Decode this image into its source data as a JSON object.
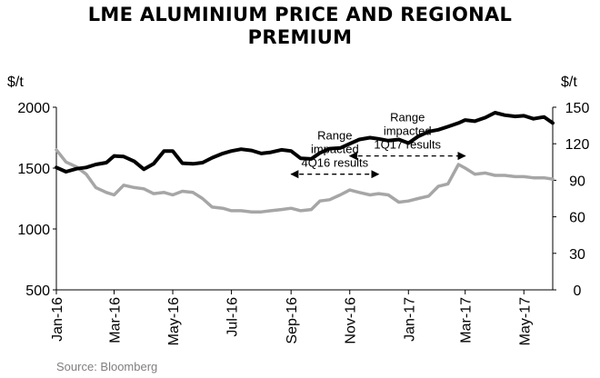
{
  "title_line1": "LME ALUMINIUM PRICE AND REGIONAL",
  "title_line2": "PREMIUM",
  "source": "Source: Bloomberg",
  "colors": {
    "lme_price": "#000000",
    "premium": "#a6a6a6",
    "axis": "#000000"
  },
  "chart_data": {
    "type": "line",
    "title": "LME ALUMINIUM PRICE AND REGIONAL PREMIUM",
    "y_left": {
      "label": "$/t",
      "range": [
        500,
        2000
      ],
      "ticks": [
        500,
        1000,
        1500,
        2000
      ]
    },
    "y_right": {
      "label": "$/t",
      "range": [
        0,
        150
      ],
      "ticks": [
        0,
        30,
        60,
        90,
        120,
        150
      ]
    },
    "x_range": [
      "2016-01-01",
      "2017-05-31"
    ],
    "x_ticks": [
      {
        "date": "2016-01-01",
        "label": "Jan-16"
      },
      {
        "date": "2016-03-01",
        "label": "Mar-16"
      },
      {
        "date": "2016-05-01",
        "label": "May-16"
      },
      {
        "date": "2016-07-01",
        "label": "Jul-16"
      },
      {
        "date": "2016-09-01",
        "label": "Sep-16"
      },
      {
        "date": "2016-11-01",
        "label": "Nov-16"
      },
      {
        "date": "2017-01-01",
        "label": "Jan-17"
      },
      {
        "date": "2017-03-01",
        "label": "Mar-17"
      },
      {
        "date": "2017-05-01",
        "label": "May-17"
      }
    ],
    "series": [
      {
        "axis": "left",
        "style": "bold-black",
        "points": [
          [
            "2016-01-01",
            1505
          ],
          [
            "2016-01-11",
            1470
          ],
          [
            "2016-01-22",
            1495
          ],
          [
            "2016-02-01",
            1505
          ],
          [
            "2016-02-11",
            1530
          ],
          [
            "2016-02-22",
            1545
          ],
          [
            "2016-03-01",
            1600
          ],
          [
            "2016-03-11",
            1595
          ],
          [
            "2016-03-22",
            1555
          ],
          [
            "2016-04-01",
            1490
          ],
          [
            "2016-04-11",
            1535
          ],
          [
            "2016-04-22",
            1640
          ],
          [
            "2016-05-01",
            1640
          ],
          [
            "2016-05-11",
            1540
          ],
          [
            "2016-05-22",
            1535
          ],
          [
            "2016-06-01",
            1545
          ],
          [
            "2016-06-11",
            1585
          ],
          [
            "2016-06-22",
            1620
          ],
          [
            "2016-07-01",
            1640
          ],
          [
            "2016-07-11",
            1655
          ],
          [
            "2016-07-22",
            1645
          ],
          [
            "2016-08-01",
            1620
          ],
          [
            "2016-08-11",
            1630
          ],
          [
            "2016-08-22",
            1650
          ],
          [
            "2016-09-01",
            1640
          ],
          [
            "2016-09-11",
            1580
          ],
          [
            "2016-09-22",
            1575
          ],
          [
            "2016-10-01",
            1625
          ],
          [
            "2016-10-11",
            1660
          ],
          [
            "2016-10-22",
            1665
          ],
          [
            "2016-11-01",
            1700
          ],
          [
            "2016-11-11",
            1735
          ],
          [
            "2016-11-22",
            1750
          ],
          [
            "2016-12-01",
            1740
          ],
          [
            "2016-12-11",
            1725
          ],
          [
            "2016-12-22",
            1735
          ],
          [
            "2017-01-01",
            1705
          ],
          [
            "2017-01-11",
            1760
          ],
          [
            "2017-01-22",
            1800
          ],
          [
            "2017-02-01",
            1815
          ],
          [
            "2017-02-11",
            1840
          ],
          [
            "2017-02-22",
            1870
          ],
          [
            "2017-03-01",
            1895
          ],
          [
            "2017-03-11",
            1885
          ],
          [
            "2017-03-22",
            1915
          ],
          [
            "2017-04-01",
            1955
          ],
          [
            "2017-04-11",
            1935
          ],
          [
            "2017-04-22",
            1925
          ],
          [
            "2017-05-01",
            1930
          ],
          [
            "2017-05-11",
            1905
          ],
          [
            "2017-05-22",
            1920
          ],
          [
            "2017-05-31",
            1870
          ]
        ]
      },
      {
        "axis": "right",
        "style": "bold-grey",
        "points": [
          [
            "2016-01-01",
            115
          ],
          [
            "2016-01-11",
            105
          ],
          [
            "2016-01-22",
            101
          ],
          [
            "2016-02-01",
            95
          ],
          [
            "2016-02-11",
            84
          ],
          [
            "2016-02-22",
            80
          ],
          [
            "2016-03-01",
            78
          ],
          [
            "2016-03-11",
            86
          ],
          [
            "2016-03-22",
            84
          ],
          [
            "2016-04-01",
            83
          ],
          [
            "2016-04-11",
            79
          ],
          [
            "2016-04-22",
            80
          ],
          [
            "2016-05-01",
            78
          ],
          [
            "2016-05-11",
            81
          ],
          [
            "2016-05-22",
            80
          ],
          [
            "2016-06-01",
            75
          ],
          [
            "2016-06-11",
            68
          ],
          [
            "2016-06-22",
            67
          ],
          [
            "2016-07-01",
            65
          ],
          [
            "2016-07-11",
            65
          ],
          [
            "2016-07-22",
            64
          ],
          [
            "2016-08-01",
            64
          ],
          [
            "2016-08-11",
            65
          ],
          [
            "2016-08-22",
            66
          ],
          [
            "2016-09-01",
            67
          ],
          [
            "2016-09-11",
            65
          ],
          [
            "2016-09-22",
            66
          ],
          [
            "2016-10-01",
            73
          ],
          [
            "2016-10-11",
            74
          ],
          [
            "2016-10-22",
            78
          ],
          [
            "2016-11-01",
            82
          ],
          [
            "2016-11-11",
            80
          ],
          [
            "2016-11-22",
            78
          ],
          [
            "2016-12-01",
            79
          ],
          [
            "2016-12-11",
            78
          ],
          [
            "2016-12-22",
            72
          ],
          [
            "2017-01-01",
            73
          ],
          [
            "2017-01-11",
            75
          ],
          [
            "2017-01-22",
            77
          ],
          [
            "2017-02-01",
            85
          ],
          [
            "2017-02-11",
            87
          ],
          [
            "2017-02-22",
            103
          ],
          [
            "2017-03-01",
            100
          ],
          [
            "2017-03-11",
            95
          ],
          [
            "2017-03-22",
            96
          ],
          [
            "2017-04-01",
            94
          ],
          [
            "2017-04-11",
            94
          ],
          [
            "2017-04-22",
            93
          ],
          [
            "2017-05-01",
            93
          ],
          [
            "2017-05-11",
            92
          ],
          [
            "2017-05-22",
            92
          ],
          [
            "2017-05-31",
            91
          ]
        ]
      }
    ],
    "annotations": [
      {
        "lines": [
          "Range",
          "impacted",
          "4Q16 results"
        ],
        "from": "2016-09-01",
        "to": "2016-12-01",
        "y": 1450,
        "axis": "left"
      },
      {
        "lines": [
          "Range",
          "impacted",
          "1Q17 results"
        ],
        "from": "2016-11-01",
        "to": "2017-03-01",
        "y": 1600,
        "axis": "left"
      }
    ],
    "grid": false,
    "legend": "none"
  }
}
